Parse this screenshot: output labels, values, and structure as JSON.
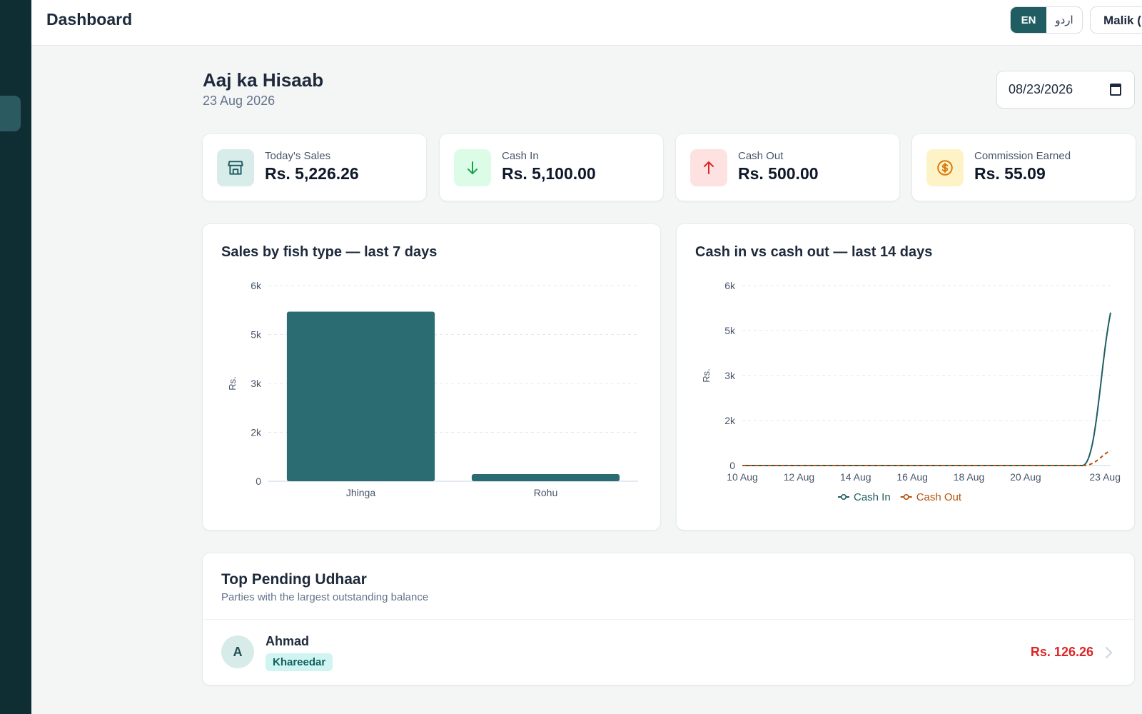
{
  "topbar": {
    "title": "Dashboard",
    "lang_en": "EN",
    "lang_ur": "اردو",
    "user_name": "Malik ("
  },
  "header": {
    "title": "Aaj ka Hisaab",
    "date": "23 Aug 2026",
    "date_input": "08/23/2026"
  },
  "stats": [
    {
      "label": "Today's Sales",
      "value": "Rs. 5,226.26",
      "icon": "store-icon",
      "color": "#1f5d63",
      "bg": "#d8ecea"
    },
    {
      "label": "Cash In",
      "value": "Rs. 5,100.00",
      "icon": "arrow-down-icon",
      "color": "#16a34a",
      "bg": "#dcfce7"
    },
    {
      "label": "Cash Out",
      "value": "Rs. 500.00",
      "icon": "arrow-up-icon",
      "color": "#dc2626",
      "bg": "#fee2e2"
    },
    {
      "label": "Commission Earned",
      "value": "Rs. 55.09",
      "icon": "dollar-coin-icon",
      "color": "#d97706",
      "bg": "#fef3c7"
    }
  ],
  "chart_data": [
    {
      "type": "bar",
      "title": "Sales by fish type — last 7 days",
      "ylabel": "Rs.",
      "categories": [
        "Jhinga",
        "Rohu"
      ],
      "values": [
        5200,
        220
      ],
      "ylim": [
        0,
        6000
      ],
      "yticks": [
        0,
        1500,
        3000,
        4500,
        6000
      ],
      "ytick_labels": [
        "0",
        "2k",
        "3k",
        "5k",
        "6k"
      ],
      "color": "#2b6b72",
      "grid": true
    },
    {
      "type": "line",
      "title": "Cash in vs cash out — last 14 days",
      "ylabel": "Rs.",
      "x": [
        "10 Aug",
        "11 Aug",
        "12 Aug",
        "13 Aug",
        "14 Aug",
        "15 Aug",
        "16 Aug",
        "17 Aug",
        "18 Aug",
        "19 Aug",
        "20 Aug",
        "21 Aug",
        "22 Aug",
        "23 Aug"
      ],
      "xtick_labels": [
        "10 Aug",
        "12 Aug",
        "14 Aug",
        "16 Aug",
        "18 Aug",
        "20 Aug",
        "23 Aug"
      ],
      "series": [
        {
          "name": "Cash In",
          "values": [
            0,
            0,
            0,
            0,
            0,
            0,
            0,
            0,
            0,
            0,
            0,
            0,
            0,
            5100
          ],
          "color": "#1f5d63",
          "dashed": false
        },
        {
          "name": "Cash Out",
          "values": [
            0,
            0,
            0,
            0,
            0,
            0,
            0,
            0,
            0,
            0,
            0,
            0,
            0,
            500
          ],
          "color": "#b45309",
          "dashed": true
        }
      ],
      "ylim": [
        0,
        6000
      ],
      "yticks": [
        0,
        1500,
        3000,
        4500,
        6000
      ],
      "ytick_labels": [
        "0",
        "2k",
        "3k",
        "5k",
        "6k"
      ],
      "legend": "bottom",
      "grid": true
    }
  ],
  "udhaar": {
    "title": "Top Pending Udhaar",
    "subtitle": "Parties with the largest outstanding balance",
    "rows": [
      {
        "initial": "A",
        "name": "Ahmad",
        "tag": "Khareedar",
        "amount": "Rs. 126.26"
      }
    ]
  }
}
